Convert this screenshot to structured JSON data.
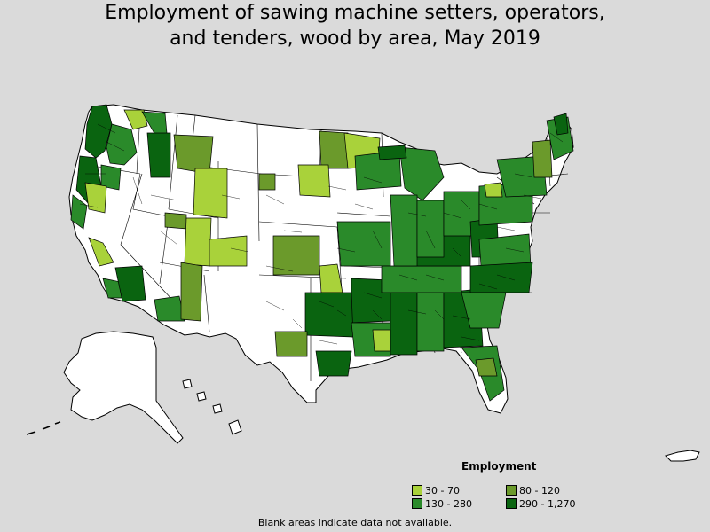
{
  "title_line1": "Employment of sawing machine setters, operators,",
  "title_line2": "and tenders, wood by area, May 2019",
  "legend": {
    "title": "Employment",
    "items": [
      {
        "label": "30 - 70",
        "color": "#a9d23a"
      },
      {
        "label": "80 - 120",
        "color": "#6b9a2b"
      },
      {
        "label": "130 - 280",
        "color": "#2a8a2a"
      },
      {
        "label": "290 - 1,270",
        "color": "#0a6410"
      }
    ]
  },
  "footnote": "Blank areas indicate data not available."
}
